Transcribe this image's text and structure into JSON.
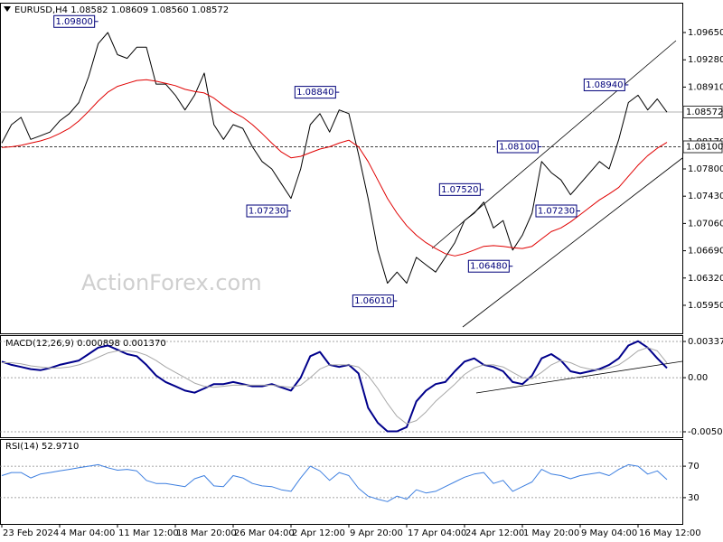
{
  "chart_data": [
    {
      "type": "line",
      "title": "EURUSD,H4  1.08582 1.08609 1.08560 1.08572",
      "watermark": "ActionForex.com",
      "xlim": [
        0,
        69
      ],
      "ylim": [
        1.05582,
        1.1003
      ],
      "yticks": [
        {
          "value": 1.0595,
          "label": "1.05950"
        },
        {
          "value": 1.0632,
          "label": "1.06320"
        },
        {
          "value": 1.0669,
          "label": "1.06690"
        },
        {
          "value": 1.0706,
          "label": "1.07060"
        },
        {
          "value": 1.0743,
          "label": "1.07430"
        },
        {
          "value": 1.078,
          "label": "1.07800"
        },
        {
          "value": 1.0817,
          "label": "1.08170"
        },
        {
          "value": 1.0854,
          "label": "1.08540"
        },
        {
          "value": 1.0891,
          "label": "1.08910"
        },
        {
          "value": 1.0928,
          "label": "1.09280"
        },
        {
          "value": 1.0965,
          "label": "1.09650"
        }
      ],
      "grid": false,
      "series": [
        {
          "name": "EURUSD",
          "color": "#000000",
          "width": 1,
          "values": [
            1.0815,
            1.084,
            1.085,
            1.082,
            1.0825,
            1.083,
            1.0845,
            1.0855,
            1.087,
            1.0905,
            1.095,
            1.0965,
            1.0935,
            1.093,
            1.0945,
            1.0945,
            1.0895,
            1.0895,
            1.088,
            1.086,
            1.088,
            1.091,
            1.084,
            1.082,
            1.084,
            1.0835,
            1.081,
            1.079,
            1.078,
            1.076,
            1.074,
            1.078,
            1.084,
            1.0855,
            1.083,
            1.086,
            1.0855,
            1.08,
            1.074,
            1.067,
            1.0625,
            1.064,
            1.0625,
            1.066,
            1.065,
            1.064,
            1.066,
            1.068,
            1.071,
            1.072,
            1.0735,
            1.07,
            1.071,
            1.067,
            1.069,
            1.072,
            1.079,
            1.0775,
            1.0765,
            1.0745,
            1.076,
            1.0775,
            1.079,
            1.078,
            1.082,
            1.087,
            1.088,
            1.086,
            1.0875,
            1.0857
          ]
        },
        {
          "name": "MA",
          "color": "#e00000",
          "width": 1,
          "values": [
            1.0809,
            1.081,
            1.0812,
            1.0815,
            1.0818,
            1.0822,
            1.0828,
            1.0835,
            1.0845,
            1.0858,
            1.0872,
            1.0884,
            1.0892,
            1.0896,
            1.09,
            1.0901,
            1.0899,
            1.0896,
            1.0893,
            1.0888,
            1.0885,
            1.0883,
            1.0876,
            1.0866,
            1.0857,
            1.085,
            1.084,
            1.0828,
            1.0815,
            1.0803,
            1.0795,
            1.0797,
            1.0802,
            1.0807,
            1.081,
            1.0815,
            1.0819,
            1.081,
            1.079,
            1.0765,
            1.074,
            1.072,
            1.0703,
            1.069,
            1.068,
            1.0672,
            1.0665,
            1.0662,
            1.0665,
            1.067,
            1.0675,
            1.0676,
            1.0675,
            1.0673,
            1.0672,
            1.0675,
            1.0685,
            1.0695,
            1.07,
            1.0708,
            1.0718,
            1.0728,
            1.0738,
            1.0746,
            1.0755,
            1.077,
            1.0785,
            1.0798,
            1.0808,
            1.0816
          ]
        }
      ],
      "price_lines": [
        {
          "value": 1.08572,
          "label": "1.08572",
          "style": "solid"
        },
        {
          "value": 1.081,
          "label": "1.08100",
          "style": "dashed"
        }
      ],
      "annotations": [
        {
          "label": "1.09800",
          "value": 1.098,
          "at": 10
        },
        {
          "label": "1.08840",
          "value": 1.0884,
          "at": 35
        },
        {
          "label": "1.07230",
          "value": 1.0723,
          "at": 30
        },
        {
          "label": "1.06010",
          "value": 1.0601,
          "at": 41
        },
        {
          "label": "1.07520",
          "value": 1.0752,
          "at": 50
        },
        {
          "label": "1.06480",
          "value": 1.0648,
          "at": 53
        },
        {
          "label": "1.08100",
          "value": 1.081,
          "at": 56
        },
        {
          "label": "1.07230",
          "value": 1.0723,
          "at": 60
        },
        {
          "label": "1.08940",
          "value": 1.0894,
          "at": 65
        }
      ]
    },
    {
      "type": "line",
      "title": "MACD(12,26,9) 0.000898 0.001370",
      "xlim": [
        0,
        69
      ],
      "ylim": [
        -0.00546,
        0.00388
      ],
      "yticks": [
        -0.00504,
        {
          "value": 0,
          "label": "0.00"
        },
        0.003375
      ],
      "grid": "dashed",
      "series": [
        {
          "name": "MACD",
          "color": "#00008b",
          "width": 2,
          "values": [
            0.0015,
            0.0012,
            0.001,
            0.0008,
            0.0007,
            0.0009,
            0.0012,
            0.0014,
            0.0016,
            0.0022,
            0.0028,
            0.003,
            0.0026,
            0.0022,
            0.002,
            0.0012,
            0.0002,
            -0.0004,
            -0.0008,
            -0.0012,
            -0.0014,
            -0.001,
            -0.0006,
            -0.0006,
            -0.0004,
            -0.0006,
            -0.0008,
            -0.0008,
            -0.0006,
            -0.0009,
            -0.0012,
            0,
            0.002,
            0.0024,
            0.0012,
            0.001,
            0.0012,
            0.0004,
            -0.0028,
            -0.0042,
            -0.005,
            -0.005,
            -0.0046,
            -0.0022,
            -0.0012,
            -0.0006,
            -0.0004,
            0.0006,
            0.0015,
            0.0018,
            0.0012,
            0.001,
            0.0006,
            -0.0004,
            -0.0006,
            0.0002,
            0.0018,
            0.0022,
            0.0016,
            0.0006,
            0.0004,
            0.0006,
            0.0008,
            0.0012,
            0.0018,
            0.003,
            0.0034,
            0.0028,
            0.0018,
            0.000898
          ]
        },
        {
          "name": "Signal",
          "color": "#a8a8a8",
          "width": 1,
          "values": [
            0.0014,
            0.0014,
            0.0013,
            0.0011,
            0.001,
            0.0009,
            0.0009,
            0.001,
            0.0012,
            0.0015,
            0.0019,
            0.0023,
            0.0025,
            0.0025,
            0.0024,
            0.0021,
            0.0016,
            0.001,
            0.0005,
            0,
            -0.0005,
            -0.0008,
            -0.0009,
            -0.0008,
            -0.0007,
            -0.0007,
            -0.0007,
            -0.0007,
            -0.0007,
            -0.0008,
            -0.0009,
            -0.0007,
            0,
            0.0008,
            0.0012,
            0.0012,
            0.0012,
            0.001,
            0.0002,
            -0.001,
            -0.0024,
            -0.0036,
            -0.0043,
            -0.004,
            -0.0032,
            -0.0022,
            -0.0014,
            -0.0006,
            0.0003,
            0.0009,
            0.0012,
            0.0012,
            0.001,
            0.0005,
            0,
            -0.0001,
            0.0005,
            0.0012,
            0.0016,
            0.0014,
            0.001,
            0.0008,
            0.0007,
            0.0009,
            0.0012,
            0.0018,
            0.0025,
            0.0028,
            0.0025,
            0.00137
          ]
        }
      ]
    },
    {
      "type": "line",
      "title": "RSI(14) 52.9710",
      "xlim": [
        0,
        69
      ],
      "ylim": [
        0,
        100
      ],
      "yticks": [
        30,
        70
      ],
      "grid": "dashed",
      "xticks": [
        {
          "value": 0,
          "label": "23 Feb 2024"
        },
        {
          "value": 6,
          "label": "4 Mar 04:00"
        },
        {
          "value": 12,
          "label": "11 Mar 12:00"
        },
        {
          "value": 18,
          "label": "18 Mar 20:00"
        },
        {
          "value": 24,
          "label": "26 Mar 04:00"
        },
        {
          "value": 30,
          "label": "2 Apr 12:00"
        },
        {
          "value": 36,
          "label": "9 Apr 20:00"
        },
        {
          "value": 42,
          "label": "17 Apr 04:00"
        },
        {
          "value": 48,
          "label": "24 Apr 12:00"
        },
        {
          "value": 54,
          "label": "1 May 20:00"
        },
        {
          "value": 60,
          "label": "9 May 04:00"
        },
        {
          "value": 66,
          "label": "16 May 12:00"
        }
      ],
      "series": [
        {
          "name": "RSI",
          "color": "#3d7fe0",
          "width": 1,
          "values": [
            58,
            62,
            62,
            55,
            60,
            62,
            64,
            66,
            68,
            70,
            72,
            68,
            65,
            66,
            64,
            52,
            48,
            48,
            46,
            44,
            54,
            58,
            45,
            44,
            58,
            55,
            48,
            45,
            44,
            40,
            38,
            55,
            70,
            64,
            52,
            62,
            58,
            42,
            32,
            28,
            25,
            32,
            28,
            40,
            36,
            38,
            44,
            50,
            56,
            60,
            62,
            48,
            52,
            38,
            44,
            50,
            66,
            60,
            58,
            54,
            58,
            60,
            62,
            58,
            66,
            72,
            70,
            60,
            64,
            52.971
          ]
        }
      ]
    }
  ]
}
